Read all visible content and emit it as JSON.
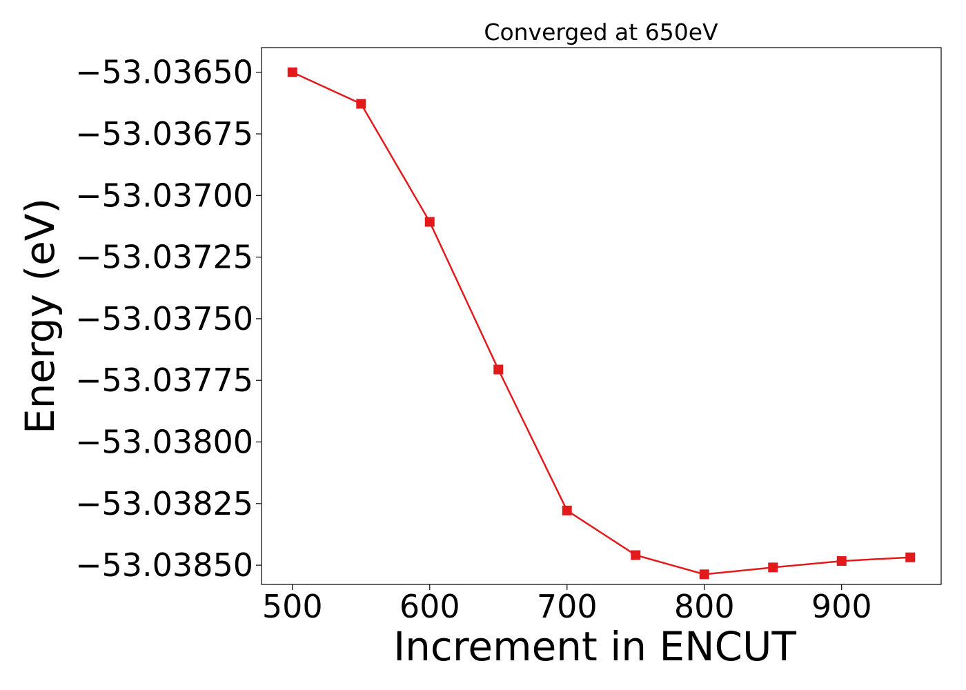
{
  "chart_data": {
    "type": "line",
    "title": "Converged at 650eV",
    "xlabel": "Increment in ENCUT",
    "ylabel": "Energy (eV)",
    "x": [
      500,
      550,
      600,
      650,
      700,
      750,
      800,
      850,
      900,
      950
    ],
    "series": [
      {
        "values": [
          -53.0365,
          -53.036628,
          -53.037107,
          -53.037706,
          -53.038278,
          -53.038459,
          -53.038537,
          -53.038509,
          -53.038483,
          -53.038468
        ],
        "color": "#e31a1c",
        "marker": "square"
      }
    ],
    "xticks": [
      500,
      600,
      700,
      800,
      900
    ],
    "xtick_labels": [
      "500",
      "600",
      "700",
      "800",
      "900"
    ],
    "yticks": [
      -53.0365,
      -53.03675,
      -53.037,
      -53.03725,
      -53.0375,
      -53.03775,
      -53.038,
      -53.03825,
      -53.0385
    ],
    "ytick_labels": [
      "−53.03650",
      "−53.03675",
      "−53.03700",
      "−53.03725",
      "−53.03750",
      "−53.03775",
      "−53.03800",
      "−53.03825",
      "−53.03850"
    ],
    "xlim": [
      477.5,
      972.5
    ],
    "ylim": [
      -53.038578,
      -53.0364
    ],
    "grid": false,
    "legend": "none"
  }
}
